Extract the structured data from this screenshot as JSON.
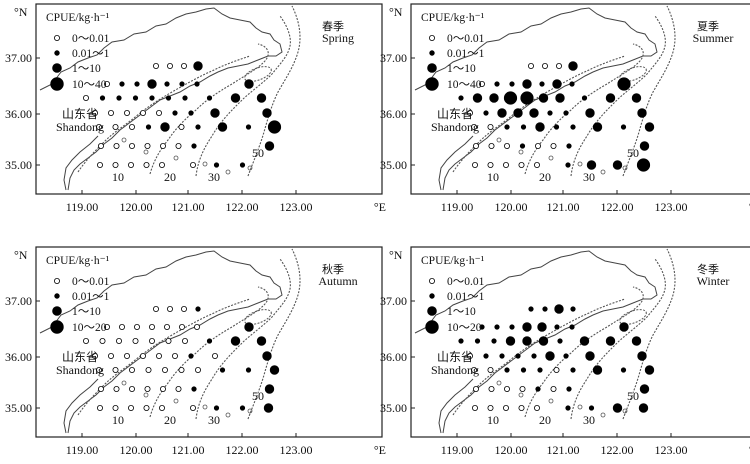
{
  "legend_title": "CPUE/kg·h⁻¹",
  "unit_north": "°N",
  "unit_east": "°E",
  "province_cn": "山东省",
  "province_en": "Shandong",
  "lat_ticks": [
    "37.00",
    "36.00",
    "35.00"
  ],
  "lon_ticks": [
    "119.00",
    "120.00",
    "121.00",
    "122.00",
    "123.00"
  ],
  "depth_labels": [
    "10",
    "20",
    "30",
    "50"
  ],
  "colors": {
    "ink": "#111111",
    "coast": "#444444",
    "isobath": "#555555"
  },
  "panels": [
    {
      "season_cn": "春季",
      "season_en": "Spring",
      "legend": [
        "0～0.01",
        "0.01～1",
        "1～10",
        "10～40"
      ],
      "grid": [
        "..........",
        "....AAAC..",
        ".ABBCBBB.C",
        "ABBBBBBBCC",
        "AAAAABBC.C",
        "AAABCABCBD",
        "AAAAAAB..C",
        "AAAAA.ABB."
      ]
    },
    {
      "season_cn": "夏季",
      "season_en": "Summer",
      "legend": [
        "0～0.01",
        "0.01～1",
        "1～10",
        "10～40"
      ],
      "grid": [
        "..........",
        "....AAAC..",
        ".ABBCBCB.D",
        "BCCDDCCBCC",
        "ABCCCBBC.C",
        "AABBCBBCBC",
        "AAABAAB..C",
        "AAAAA.BCCD"
      ]
    },
    {
      "season_cn": "秋季",
      "season_en": "Autumn",
      "legend": [
        "0～0.01",
        "0.01～1",
        "1～10",
        "10～20"
      ],
      "grid": [
        "..........",
        "....AAAB..",
        ".AAAAAAA.C",
        "AAAAAAABCC",
        "AAAAAABA.C",
        "AAAAAAABBC",
        "AAAAAAB..C",
        "AAAAA.ABBC"
      ]
    },
    {
      "season_cn": "冬季",
      "season_en": "Winter",
      "legend": [
        "0～0.01",
        "0.01～1",
        "1～10",
        "10～20"
      ],
      "grid": [
        "..........",
        "....BBCB..",
        ".BBBCCBB.C",
        "BBBCCCBCCC",
        "ABBBBCBC.C",
        "AABBBABCBC",
        "AAAABAB..C",
        "AAAAA.BBCC"
      ]
    }
  ]
}
